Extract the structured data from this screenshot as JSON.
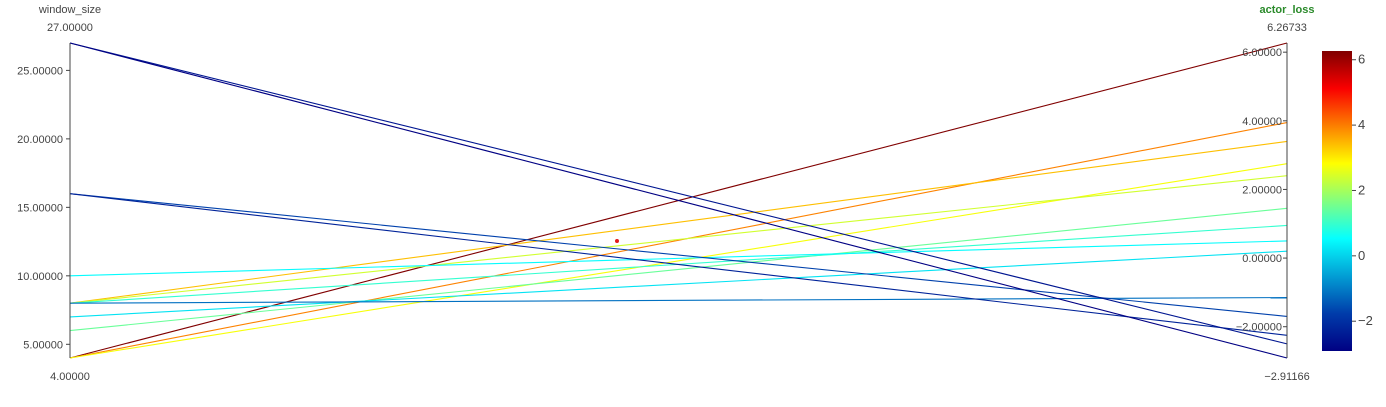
{
  "chart_data": {
    "type": "parallel_coordinates",
    "axes": [
      {
        "label": "window_size",
        "label_color": "#444444",
        "range": [
          4.0,
          27.0
        ],
        "range_labels": [
          "4.00000",
          "27.00000"
        ],
        "ticks": [
          5,
          10,
          15,
          20,
          25
        ],
        "tick_labels": [
          "5.00000",
          "10.00000",
          "15.00000",
          "20.00000",
          "25.00000"
        ]
      },
      {
        "label": "actor_loss",
        "label_color": "#2a8a2a",
        "range": [
          -2.91166,
          6.26733
        ],
        "range_labels": [
          "−2.91166",
          "6.26733"
        ],
        "ticks": [
          -2,
          0,
          2,
          4,
          6
        ],
        "tick_labels": [
          "−2.00000",
          "0.00000",
          "2.00000",
          "4.00000",
          "6.00000"
        ]
      }
    ],
    "lines": [
      {
        "window_size": 4,
        "actor_loss": 6.26733
      },
      {
        "window_size": 4,
        "actor_loss": 3.95
      },
      {
        "window_size": 4,
        "actor_loss": 2.75
      },
      {
        "window_size": 8,
        "actor_loss": 2.4
      },
      {
        "window_size": 6,
        "actor_loss": 1.45
      },
      {
        "window_size": 10,
        "actor_loss": 0.5
      },
      {
        "window_size": 8,
        "actor_loss": 0.95
      },
      {
        "window_size": 7,
        "actor_loss": 0.2
      },
      {
        "window_size": 8,
        "actor_loss": -1.15
      },
      {
        "window_size": 16,
        "actor_loss": -1.7
      },
      {
        "window_size": 16,
        "actor_loss": -2.25
      },
      {
        "window_size": 27,
        "actor_loss": -2.5
      },
      {
        "window_size": 27,
        "actor_loss": -2.91166
      },
      {
        "window_size": 8,
        "actor_loss": 3.4
      }
    ],
    "colorscale": "jet",
    "color_range": [
      -2.91166,
      6.26733
    ],
    "colorbar": {
      "ticks": [
        -2,
        0,
        2,
        4,
        6
      ],
      "tick_labels": [
        "−2",
        "0",
        "2",
        "4",
        "6"
      ]
    },
    "marker_color": "#e31a1c"
  }
}
